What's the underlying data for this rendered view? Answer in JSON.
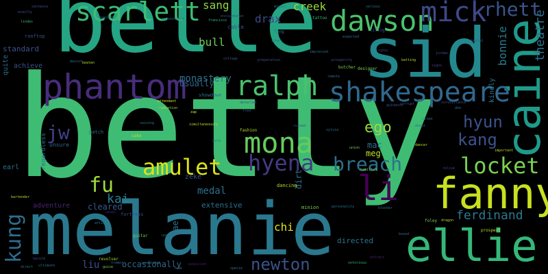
{
  "words": [
    {
      "text": "betty",
      "color": "#3fbc73"
    },
    {
      "text": "belle",
      "color": "#25a584"
    },
    {
      "text": "melanie",
      "color": "#2a788e"
    },
    {
      "text": "sid",
      "color": "#23898e"
    },
    {
      "text": "caine",
      "color": "#1f9a8a"
    },
    {
      "text": "fanny",
      "color": "#c8e020"
    },
    {
      "text": "ellie",
      "color": "#35b779"
    },
    {
      "text": "phantom",
      "color": "#472d7b"
    },
    {
      "text": "shakespeare",
      "color": "#31688e"
    },
    {
      "text": "dawson",
      "color": "#4ac16d"
    },
    {
      "text": "scarlett",
      "color": "#3dbc74"
    },
    {
      "text": "mick",
      "color": "#3e4989"
    },
    {
      "text": "rhett",
      "color": "#39558c"
    },
    {
      "text": "ralph",
      "color": "#4ac16d"
    },
    {
      "text": "mona",
      "color": "#65cb5e"
    },
    {
      "text": "hyena",
      "color": "#443a83"
    },
    {
      "text": "amulet",
      "color": "#dde318"
    },
    {
      "text": "locket",
      "color": "#7ad151"
    },
    {
      "text": "breach",
      "color": "#2c728e"
    },
    {
      "text": "li",
      "color": "#440154"
    },
    {
      "text": "ego",
      "color": "#9bd93c"
    },
    {
      "text": "hyun",
      "color": "#3b528b"
    },
    {
      "text": "kang",
      "color": "#3b528b"
    },
    {
      "text": "jw",
      "color": "#424086"
    },
    {
      "text": "fu",
      "color": "#a0da39"
    },
    {
      "text": "kung",
      "color": "#2e6e8e"
    },
    {
      "text": "kai",
      "color": "#277f8e"
    },
    {
      "text": "newton",
      "color": "#3b528b"
    },
    {
      "text": "ferdinand",
      "color": "#2a788e"
    },
    {
      "text": "bonnie",
      "color": "#29798e"
    },
    {
      "text": "theatre",
      "color": "#2d708e"
    },
    {
      "text": "sang",
      "color": "#8ed645"
    },
    {
      "text": "creek",
      "color": "#9bd93c"
    },
    {
      "text": "drax",
      "color": "#3e4989"
    },
    {
      "text": "bull",
      "color": "#6ccd5a"
    },
    {
      "text": "monastery",
      "color": "#2d708e"
    },
    {
      "text": "usually",
      "color": "#31688e"
    },
    {
      "text": "mac",
      "color": "#2c728e"
    },
    {
      "text": "meg",
      "color": "#c2df23"
    },
    {
      "text": "chi",
      "color": "#dde318"
    },
    {
      "text": "medal",
      "color": "#2d708e"
    },
    {
      "text": "cleared",
      "color": "#38588c"
    },
    {
      "text": "extensive",
      "color": "#2c728e"
    },
    {
      "text": "liu",
      "color": "#3b528b"
    },
    {
      "text": "occasionally",
      "color": "#31688e"
    },
    {
      "text": "directed",
      "color": "#2c728e"
    },
    {
      "text": "standard",
      "color": "#3b528b"
    },
    {
      "text": "adventure",
      "color": "#482475"
    },
    {
      "text": "tae",
      "color": "#2d708e"
    },
    {
      "text": "dirt",
      "color": "#2e6e8e"
    },
    {
      "text": "zeke",
      "color": "#3b528b"
    },
    {
      "text": "achieve",
      "color": "#3b528b"
    },
    {
      "text": "quite",
      "color": "#2e6e8e"
    },
    {
      "text": "earl",
      "color": "#2d708e"
    },
    {
      "text": "kindly",
      "color": "#2a788e"
    },
    {
      "text": "fortress",
      "color": "#3e4989"
    },
    {
      "text": "dancing",
      "color": "#b8de29"
    },
    {
      "text": "minion",
      "color": "#7ad151"
    },
    {
      "text": "regardless",
      "color": "#2c728e"
    },
    {
      "text": "unsure",
      "color": "#31688e"
    },
    {
      "text": "rooftop",
      "color": "#3b528b"
    },
    {
      "text": "patch",
      "color": "#2c728e"
    },
    {
      "text": "fashion",
      "color": "#b8de29"
    },
    {
      "text": "fang",
      "color": "#2e6e8e"
    },
    {
      "text": "cable",
      "color": "#3b528b"
    },
    {
      "text": "showdown",
      "color": "#2c728e"
    },
    {
      "text": "tattoo",
      "color": "#35b779"
    },
    {
      "text": "butcher",
      "color": "#7ad151"
    },
    {
      "text": "designer",
      "color": "#7ad151"
    },
    {
      "text": "guitar",
      "color": "#6ccd5a"
    },
    {
      "text": "revolver",
      "color": "#a0da39"
    },
    {
      "text": "prospect",
      "color": "#b8de29"
    },
    {
      "text": "foley",
      "color": "#7ad151"
    },
    {
      "text": "dragon",
      "color": "#b8de29"
    },
    {
      "text": "union",
      "color": "#7ad151"
    },
    {
      "text": "dancer",
      "color": "#c2df23"
    },
    {
      "text": "sylvia",
      "color": "#2c728e"
    },
    {
      "text": "impressed",
      "color": "#31688e"
    },
    {
      "text": "preparation",
      "color": "#3b528b"
    },
    {
      "text": "encountered",
      "color": "#3e4989"
    },
    {
      "text": "attendant",
      "color": "#dde318"
    },
    {
      "text": "ramiation",
      "color": "#a0da39"
    },
    {
      "text": "simultaneously",
      "color": "#b8de29"
    },
    {
      "text": "personality",
      "color": "#2c728e"
    },
    {
      "text": "blocker",
      "color": "#2c728e"
    },
    {
      "text": "important",
      "color": "#b8de29"
    },
    {
      "text": "hamilton",
      "color": "#7ad151"
    },
    {
      "text": "batting",
      "color": "#b8de29"
    },
    {
      "text": "francisco",
      "color": "#35b779"
    },
    {
      "text": "corrupt",
      "color": "#3b528b"
    },
    {
      "text": "surveillance",
      "color": "#3b528b"
    },
    {
      "text": "jordan",
      "color": "#3b528b"
    },
    {
      "text": "gold",
      "color": "#2c728e"
    },
    {
      "text": "attic",
      "color": "#2c728e"
    },
    {
      "text": "lindes",
      "color": "#35b779"
    },
    {
      "text": "sentence",
      "color": "#3b528b"
    },
    {
      "text": "bartender",
      "color": "#b8de29"
    },
    {
      "text": "suspended",
      "color": "#31688e"
    },
    {
      "text": "sake",
      "color": "#b8de29"
    },
    {
      "text": "fred",
      "color": "#3b528b"
    },
    {
      "text": "zap",
      "color": "#dde318"
    },
    {
      "text": "miguel",
      "color": "#2c728e"
    },
    {
      "text": "citing",
      "color": "#3e4989"
    },
    {
      "text": "serious",
      "color": "#2c728e"
    },
    {
      "text": "notorious",
      "color": "#35b779"
    },
    {
      "text": "cynic",
      "color": "#3b528b"
    },
    {
      "text": "prosperity",
      "color": "#3b528b"
    },
    {
      "text": "remote",
      "color": "#2c728e"
    },
    {
      "text": "mascot",
      "color": "#2c728e"
    },
    {
      "text": "item",
      "color": "#2c728e"
    },
    {
      "text": "cottage",
      "color": "#3b528b"
    },
    {
      "text": "usual",
      "color": "#482475"
    },
    {
      "text": "guise",
      "color": "#7ad151"
    },
    {
      "text": "tremor",
      "color": "#2c728e"
    },
    {
      "text": "beaten",
      "color": "#b8de29"
    },
    {
      "text": "uncover",
      "color": "#2c728e"
    },
    {
      "text": "seizing",
      "color": "#2c728e"
    },
    {
      "text": "harold",
      "color": "#3b528b"
    },
    {
      "text": "direct",
      "color": "#2c728e"
    },
    {
      "text": "ultimate",
      "color": "#2c728e"
    },
    {
      "text": "specie",
      "color": "#2c728e"
    },
    {
      "text": "suspicion",
      "color": "#482475"
    },
    {
      "text": "attract",
      "color": "#482475"
    },
    {
      "text": "detailed",
      "color": "#3b528b"
    },
    {
      "text": "guidance",
      "color": "#3b528b"
    },
    {
      "text": "doe",
      "color": "#2c728e"
    },
    {
      "text": "cited",
      "color": "#2c728e"
    },
    {
      "text": "relive",
      "color": "#3e4989"
    },
    {
      "text": "bound",
      "color": "#2c728e"
    },
    {
      "text": "appointment",
      "color": "#2c728e"
    },
    {
      "text": "passion",
      "color": "#2c728e"
    },
    {
      "text": "exactly",
      "color": "#3b528b"
    },
    {
      "text": "doubt",
      "color": "#2c728e"
    },
    {
      "text": "signs",
      "color": "#3e4989"
    },
    {
      "text": "expected",
      "color": "#2c728e"
    },
    {
      "text": "burial",
      "color": "#3b528b"
    },
    {
      "text": "ruined",
      "color": "#3b528b"
    },
    {
      "text": "leak",
      "color": "#2c728e"
    }
  ]
}
